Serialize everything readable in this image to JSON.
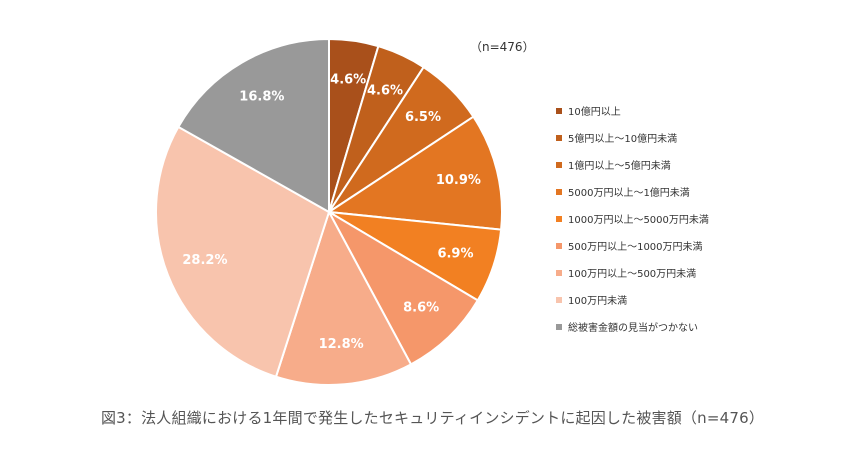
{
  "chart_data": {
    "type": "pie",
    "note": "（n=476）",
    "title": "図3：法人組織における1年間で発生したセキュリティインシデントに起因した被害額（n=476）",
    "legend_position": "right",
    "slices": [
      {
        "label": "10億円以上",
        "value": 4.6,
        "display": "4.6%",
        "color": "#a9501b"
      },
      {
        "label": "5億円以上～10億円未満",
        "value": 4.6,
        "display": "4.6%",
        "color": "#c0601c"
      },
      {
        "label": "1億円以上～5億円未満",
        "value": 6.5,
        "display": "6.5%",
        "color": "#d06a1e"
      },
      {
        "label": "5000万円以上～1億円未満",
        "value": 10.9,
        "display": "10.9%",
        "color": "#e37622"
      },
      {
        "label": "1000万円以上～5000万円未満",
        "value": 6.9,
        "display": "6.9%",
        "color": "#f28022"
      },
      {
        "label": "500万円以上～1000万円未満",
        "value": 8.6,
        "display": "8.6%",
        "color": "#f5976a"
      },
      {
        "label": "100万円以上～500万円未満",
        "value": 12.8,
        "display": "12.8%",
        "color": "#f7ac8a"
      },
      {
        "label": "100万円未満",
        "value": 28.2,
        "display": "28.2%",
        "color": "#f8c4ad"
      },
      {
        "label": "総被害金額の見当がつかない",
        "value": 16.8,
        "display": "16.8%",
        "color": "#999999"
      }
    ]
  }
}
